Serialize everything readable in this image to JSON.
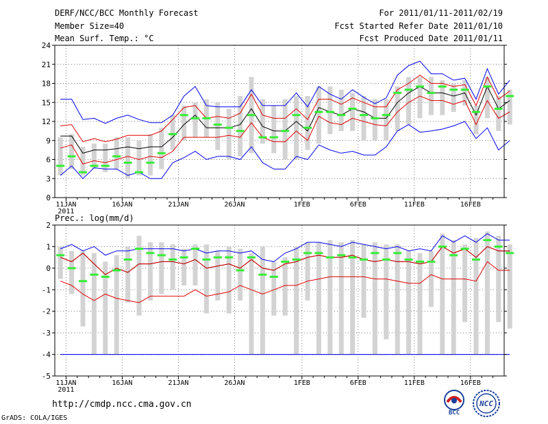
{
  "header": {
    "left": [
      "DERF/NCC/BCC Monthly Forecast",
      "Member Size=40",
      "Mean Surf. Temp.: °C"
    ],
    "right": [
      "For 2011/01/11-2011/02/19",
      "Fcst Started Refer Date 2011/01/10",
      "Fcst Produced Date 2011/01/11"
    ]
  },
  "footer": {
    "url": "http://cmdp.ncc.cma.gov.cn",
    "credit": "GrADS: COLA/IGES"
  },
  "logos": {
    "bcc": "BCC",
    "ncc": "NCC"
  },
  "colors": {
    "box": "#d3d3d3",
    "median": "#33ee33",
    "mean": "#000000",
    "inner": "#e00000",
    "outer": "#0000ee",
    "grid": "#777777"
  },
  "chart_data": [
    {
      "type": "box",
      "title": "Mean Surf. Temp.: °C",
      "ylim": [
        0,
        24
      ],
      "yticks": [
        0,
        3,
        6,
        9,
        12,
        15,
        18,
        21,
        24
      ],
      "x_range": [
        0,
        40
      ],
      "xticks": [
        {
          "x": 1,
          "label": "11JAN"
        },
        {
          "x": 6,
          "label": "16JAN"
        },
        {
          "x": 11,
          "label": "21JAN"
        },
        {
          "x": 16,
          "label": "26JAN"
        },
        {
          "x": 22,
          "label": "1FEB"
        },
        {
          "x": 27,
          "label": "6FEB"
        },
        {
          "x": 32,
          "label": "11FEB"
        },
        {
          "x": 37,
          "label": "16FEB"
        }
      ],
      "year_label": "2011",
      "box_low": [
        3.5,
        4.5,
        3.5,
        4.5,
        4,
        4.5,
        3,
        3.5,
        3.5,
        4.5,
        7.5,
        9,
        9.5,
        9.5,
        7.5,
        6,
        6.5,
        7,
        8.5,
        7,
        6,
        6,
        7.5,
        8.5,
        10,
        10.5,
        10.5,
        9,
        9,
        9,
        10.5,
        11.5,
        12.5,
        13,
        13,
        13.5,
        14.5,
        10,
        12.5,
        10.5,
        11.5
      ],
      "box_high": [
        9.5,
        10,
        8,
        8.5,
        8.5,
        9.5,
        9.5,
        9,
        10,
        11,
        13,
        14.5,
        15,
        15.5,
        15,
        14,
        16,
        19,
        15.5,
        14.5,
        15.5,
        16,
        16,
        17.5,
        17.5,
        17,
        16.5,
        16,
        15.5,
        15.5,
        17.5,
        19,
        19,
        19,
        18.5,
        18,
        18.5,
        14.5,
        19,
        16,
        17
      ],
      "median": [
        5,
        6.5,
        4,
        5,
        5,
        6.5,
        5.5,
        4,
        5.5,
        7,
        10,
        13,
        12.5,
        12.5,
        11.5,
        11,
        10.5,
        13,
        9.5,
        9.5,
        10.5,
        13,
        11,
        13.5,
        13.5,
        13,
        14,
        13,
        12.5,
        13,
        16.5,
        17,
        17.5,
        16.5,
        17.5,
        17,
        17,
        13.5,
        17.5,
        14,
        16
      ],
      "series": [
        {
          "name": "mean",
          "color": "#000000",
          "values": [
            9.7,
            9.7,
            7,
            7.5,
            7.5,
            7.7,
            8,
            7.7,
            8,
            8,
            9.5,
            11.5,
            13,
            11,
            11,
            11,
            11.5,
            14,
            11.2,
            10.5,
            10.5,
            12,
            10.5,
            14.2,
            13.5,
            13,
            14,
            13.5,
            12.5,
            12.5,
            15,
            16.5,
            17.5,
            16.5,
            16.5,
            16,
            16.5,
            13,
            17.5,
            14,
            15.3
          ]
        },
        {
          "name": "inner_upper",
          "color": "#e00000",
          "values": [
            11.3,
            11.5,
            8.8,
            9.3,
            8.8,
            9.2,
            9.8,
            9.8,
            9.8,
            10.5,
            12.3,
            14.2,
            14.5,
            12.5,
            12.8,
            12.5,
            13.3,
            16.3,
            13,
            12.5,
            12.5,
            14,
            12.3,
            15.5,
            15.5,
            14.7,
            15.7,
            15,
            14.3,
            14.3,
            17,
            18,
            19.3,
            18,
            18,
            17.5,
            17.8,
            14.5,
            19,
            15.5,
            16.8
          ]
        },
        {
          "name": "inner_lower",
          "color": "#e00000",
          "values": [
            7.8,
            8.3,
            5.3,
            5.8,
            5.5,
            6,
            6.5,
            6,
            6.5,
            6.3,
            7.3,
            9.5,
            9.5,
            9.5,
            9.5,
            9.8,
            9.5,
            11.8,
            9.5,
            8.8,
            8.8,
            10.5,
            9,
            12.8,
            11.8,
            11.5,
            12.5,
            12,
            11.5,
            11.3,
            13.5,
            15,
            16,
            15.3,
            15.3,
            14.7,
            15.3,
            11.5,
            15.3,
            12.5,
            13.5
          ]
        },
        {
          "name": "outer_upper",
          "color": "#0000ee",
          "values": [
            15.5,
            15.5,
            12.3,
            12.5,
            11.7,
            12.5,
            13,
            12.3,
            11.8,
            11.8,
            13,
            16,
            17.5,
            14.5,
            14.3,
            14.3,
            14.3,
            17,
            14.5,
            14.5,
            14.5,
            16.5,
            14.3,
            17.5,
            16.3,
            15.5,
            17,
            15.8,
            14.8,
            15.7,
            19.3,
            20.8,
            21.5,
            19.5,
            19.5,
            18.5,
            18.8,
            15.5,
            20.3,
            16.3,
            18.5
          ]
        },
        {
          "name": "outer_lower",
          "color": "#0000ee",
          "values": [
            3.5,
            5,
            3,
            4.7,
            4.5,
            4.5,
            3.5,
            4,
            3,
            3,
            5.5,
            6.3,
            7.3,
            6,
            6.5,
            6.5,
            6,
            8,
            5.5,
            4.5,
            4.5,
            6.5,
            6,
            8.3,
            7.5,
            7,
            7.3,
            6.7,
            6.7,
            8,
            10.5,
            11.5,
            10.3,
            10.5,
            10.8,
            11.3,
            12,
            9.3,
            11,
            7.5,
            9
          ]
        }
      ]
    },
    {
      "type": "box",
      "title": "Prec.: log(mm/d)",
      "ylim": [
        -5,
        2
      ],
      "yticks": [
        -5,
        -4,
        -3,
        -2,
        -1,
        0,
        1,
        2
      ],
      "x_range": [
        0,
        40
      ],
      "xticks": [
        {
          "x": 1,
          "label": "11JAN"
        },
        {
          "x": 6,
          "label": "16JAN"
        },
        {
          "x": 11,
          "label": "21JAN"
        },
        {
          "x": 16,
          "label": "26JAN"
        },
        {
          "x": 22,
          "label": "1FEB"
        },
        {
          "x": 27,
          "label": "6FEB"
        },
        {
          "x": 32,
          "label": "11FEB"
        },
        {
          "x": 37,
          "label": "16FEB"
        }
      ],
      "year_label": "2011",
      "reference_line": -4,
      "box_low": [
        -0.5,
        -1.2,
        -2.7,
        -4,
        -4,
        -4,
        -1.6,
        -2.2,
        -1.5,
        -1.2,
        -1,
        -0.8,
        -0.8,
        -2.1,
        -1.5,
        -2.1,
        -1.5,
        -4,
        -4,
        -2.2,
        -2.2,
        -4,
        -1.5,
        -4,
        -4,
        -4,
        -4,
        -2.3,
        -4,
        -3.3,
        -4,
        -4,
        -4,
        -1.8,
        -4,
        -4,
        -2.5,
        -4,
        -4,
        -2.5,
        -2.8
      ],
      "box_high": [
        1,
        0.8,
        0.8,
        0.7,
        0.3,
        0.6,
        1,
        1.5,
        1.2,
        1.2,
        1.1,
        0.9,
        1.1,
        1.1,
        0.8,
        1,
        0.9,
        0.7,
        1,
        0.3,
        0.5,
        1,
        1.2,
        1.2,
        1.3,
        1.2,
        1.3,
        1.1,
        1.2,
        1.1,
        1.1,
        0.8,
        0.7,
        0.8,
        1.6,
        1.3,
        1.1,
        1.4,
        1.7,
        1.5,
        1.1
      ],
      "median": [
        0.6,
        0,
        -0.6,
        -0.3,
        -0.4,
        -0.1,
        0.4,
        0.9,
        0.7,
        0.6,
        0.4,
        0.5,
        0.9,
        0.4,
        0.5,
        0.5,
        -0.1,
        0.5,
        -0.3,
        -0.4,
        0.3,
        0.4,
        0.7,
        0.7,
        0.5,
        0.6,
        0.5,
        0.4,
        0.7,
        0.4,
        0.7,
        0.4,
        0.3,
        0.3,
        1,
        0.6,
        0.9,
        0.4,
        1.3,
        1,
        0.7
      ],
      "series": [
        {
          "name": "mean",
          "color": "#000000",
          "values": [
            0.5,
            0.3,
            0.7,
            0.2,
            -0.3,
            0,
            -0.2,
            0.2,
            0.2,
            0.3,
            0.3,
            0.2,
            0.4,
            0,
            0.1,
            0.2,
            0,
            0.4,
            0,
            -0.1,
            0.2,
            0.3,
            0.5,
            0.6,
            0.5,
            0.5,
            0.6,
            0.4,
            0.3,
            0.4,
            0.3,
            0.3,
            0.2,
            0.3,
            1,
            0.7,
            0.9,
            0.5,
            1,
            0.8,
            0.8
          ]
        },
        {
          "name": "inner_upper",
          "color": "#e00000",
          "values": [
            0.5,
            0.3,
            0.7,
            0.2,
            -0.3,
            0,
            -0.2,
            0.2,
            0.2,
            0.3,
            0.3,
            0.2,
            0.4,
            0,
            0.1,
            0.2,
            0,
            0.4,
            0,
            -0.1,
            0.2,
            0.3,
            0.5,
            0.6,
            0.5,
            0.5,
            0.6,
            0.4,
            0.3,
            0.4,
            0.3,
            0.3,
            0.2,
            0.3,
            1,
            0.7,
            0.9,
            0.5,
            1,
            0.8,
            0.8
          ]
        },
        {
          "name": "inner_lower",
          "color": "#e00000",
          "values": [
            -0.6,
            -0.8,
            -1.2,
            -1.5,
            -1.2,
            -1.4,
            -1.5,
            -1.6,
            -1.3,
            -1.3,
            -1.3,
            -1.3,
            -1,
            -1.3,
            -1.2,
            -1.1,
            -0.8,
            -1,
            -1.2,
            -1,
            -0.8,
            -0.8,
            -0.6,
            -0.5,
            -0.4,
            -0.4,
            -0.4,
            -0.4,
            -0.5,
            -0.5,
            -0.6,
            -0.7,
            -0.7,
            -0.3,
            -0.5,
            -0.5,
            -0.5,
            -0.6,
            0.3,
            -0.1,
            -0.1
          ]
        },
        {
          "name": "outer_upper",
          "color": "#0000ee",
          "values": [
            0.9,
            1.1,
            0.8,
            1,
            0.6,
            0.8,
            0.8,
            0.9,
            0.9,
            0.9,
            0.9,
            0.8,
            0.9,
            0.7,
            0.8,
            0.8,
            0.7,
            0.8,
            0.4,
            0.3,
            0.7,
            0.9,
            1.2,
            1.2,
            1.1,
            1,
            1.2,
            1.1,
            1,
            0.9,
            1,
            0.8,
            0.9,
            0.8,
            1.5,
            1.2,
            1.5,
            1.2,
            1.6,
            1.3,
            1.3
          ]
        },
        {
          "name": "outer_lower",
          "color": "#0000ee",
          "values": [
            -4,
            -4,
            -4,
            -4,
            -4,
            -4,
            -4,
            -4,
            -4,
            -4,
            -4,
            -4,
            -4,
            -4,
            -4,
            -4,
            -4,
            -4,
            -4,
            -4,
            -4,
            -4,
            -4,
            -4,
            -4,
            -4,
            -4,
            -4,
            -4,
            -4,
            -4,
            -4,
            -4,
            -4,
            -4,
            -4,
            -4,
            -4,
            -4,
            -4,
            -4
          ]
        }
      ]
    }
  ]
}
